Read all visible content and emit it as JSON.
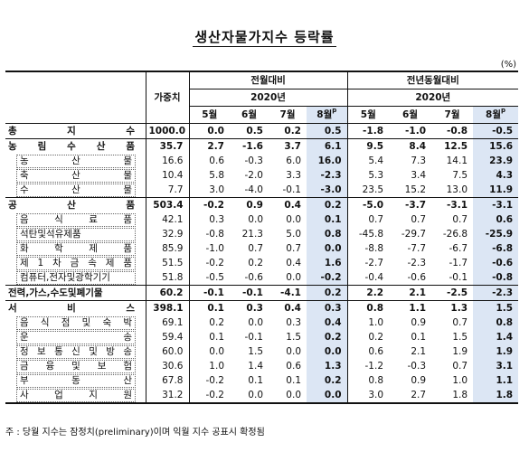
{
  "title": "생산자물가지수 등락률",
  "unit": "(%)",
  "header": {
    "weight": "가중치",
    "group1": "전월대비",
    "group2": "전년동월대비",
    "year1": "2020년",
    "year2": "2020년",
    "months": [
      "5월",
      "6월",
      "7월",
      "8월"
    ],
    "preliminary_mark": "p"
  },
  "rows": [
    {
      "label": "총  지  수",
      "level": "cat",
      "weight": "1000.0",
      "mom": [
        "0.0",
        "0.5",
        "0.2",
        "0.5"
      ],
      "yoy": [
        "-1.8",
        "-1.0",
        "-0.8",
        "-0.5"
      ]
    },
    {
      "label": "농 림 수 산 품",
      "level": "cat",
      "weight": "35.7",
      "mom": [
        "2.7",
        "-1.6",
        "3.7",
        "6.1"
      ],
      "yoy": [
        "9.5",
        "8.4",
        "12.5",
        "15.6"
      ]
    },
    {
      "label": "농 산 물",
      "level": "sub",
      "weight": "16.6",
      "mom": [
        "0.6",
        "-0.3",
        "6.0",
        "16.0"
      ],
      "yoy": [
        "5.4",
        "7.3",
        "14.1",
        "23.9"
      ]
    },
    {
      "label": "축 산 물",
      "level": "sub",
      "weight": "10.4",
      "mom": [
        "5.8",
        "-2.0",
        "3.3",
        "-2.3"
      ],
      "yoy": [
        "5.3",
        "3.4",
        "7.5",
        "4.3"
      ]
    },
    {
      "label": "수 산 물",
      "level": "sub",
      "weight": "7.7",
      "mom": [
        "3.0",
        "-4.0",
        "-0.1",
        "-3.0"
      ],
      "yoy": [
        "23.5",
        "15.2",
        "13.0",
        "11.9"
      ]
    },
    {
      "label": "공 산 품",
      "level": "cat",
      "weight": "503.4",
      "mom": [
        "-0.2",
        "0.9",
        "0.4",
        "0.2"
      ],
      "yoy": [
        "-5.0",
        "-3.7",
        "-3.1",
        "-3.1"
      ]
    },
    {
      "label": "음 식 료 품",
      "level": "sub",
      "weight": "42.1",
      "mom": [
        "0.3",
        "0.0",
        "0.0",
        "0.1"
      ],
      "yoy": [
        "0.7",
        "0.7",
        "0.7",
        "0.6"
      ]
    },
    {
      "label": "석탄및석유제품",
      "level": "sub",
      "weight": "32.9",
      "mom": [
        "-0.8",
        "21.3",
        "5.0",
        "0.8"
      ],
      "yoy": [
        "-45.8",
        "-29.7",
        "-26.8",
        "-25.9"
      ]
    },
    {
      "label": "화 학 제 품",
      "level": "sub",
      "weight": "85.9",
      "mom": [
        "-1.0",
        "0.7",
        "0.7",
        "0.0"
      ],
      "yoy": [
        "-8.8",
        "-7.7",
        "-6.7",
        "-6.8"
      ]
    },
    {
      "label": "제 1 차 금 속 제 품",
      "level": "sub",
      "weight": "51.5",
      "mom": [
        "-0.2",
        "0.2",
        "0.4",
        "1.6"
      ],
      "yoy": [
        "-2.7",
        "-2.3",
        "-1.7",
        "-0.6"
      ]
    },
    {
      "label": "컴퓨터,전자및광학기기",
      "level": "sub",
      "weight": "51.8",
      "mom": [
        "-0.5",
        "-0.6",
        "0.0",
        "-0.2"
      ],
      "yoy": [
        "-0.4",
        "-0.6",
        "-0.1",
        "-0.8"
      ]
    },
    {
      "label": "전력,가스,수도및폐기물",
      "level": "cat",
      "weight": "60.2",
      "mom": [
        "-0.1",
        "-0.1",
        "-4.1",
        "0.2"
      ],
      "yoy": [
        "2.2",
        "2.1",
        "-2.5",
        "-2.3"
      ]
    },
    {
      "label": "서  비  스",
      "level": "cat",
      "weight": "398.1",
      "mom": [
        "0.1",
        "0.3",
        "0.4",
        "0.3"
      ],
      "yoy": [
        "0.8",
        "1.1",
        "1.3",
        "1.5"
      ]
    },
    {
      "label": "음 식 점 및 숙 박",
      "level": "sub",
      "weight": "69.1",
      "mom": [
        "0.2",
        "0.0",
        "0.3",
        "0.4"
      ],
      "yoy": [
        "1.0",
        "0.9",
        "0.7",
        "0.8"
      ]
    },
    {
      "label": "운 송",
      "level": "sub",
      "weight": "59.4",
      "mom": [
        "0.1",
        "-0.1",
        "1.5",
        "0.2"
      ],
      "yoy": [
        "0.2",
        "0.1",
        "1.5",
        "1.4"
      ]
    },
    {
      "label": "정 보 통 신 및 방 송",
      "level": "sub",
      "weight": "60.0",
      "mom": [
        "0.0",
        "1.5",
        "0.0",
        "0.0"
      ],
      "yoy": [
        "0.6",
        "2.1",
        "1.9",
        "1.9"
      ]
    },
    {
      "label": "금 융 및 보 험",
      "level": "sub",
      "weight": "30.6",
      "mom": [
        "1.0",
        "1.4",
        "0.6",
        "1.3"
      ],
      "yoy": [
        "-1.2",
        "-0.3",
        "0.7",
        "3.1"
      ]
    },
    {
      "label": "부 동 산",
      "level": "sub",
      "weight": "67.8",
      "mom": [
        "-0.2",
        "0.1",
        "0.1",
        "0.2"
      ],
      "yoy": [
        "0.8",
        "0.9",
        "1.0",
        "1.1"
      ]
    },
    {
      "label": "사 업 지 원",
      "level": "sub",
      "weight": "31.2",
      "mom": [
        "-0.2",
        "0.0",
        "0.0",
        "0.0"
      ],
      "yoy": [
        "3.0",
        "2.7",
        "1.8",
        "1.8"
      ]
    }
  ],
  "note": "주 : 당월 지수는 잠정치(preliminary)이며 익월 지수 공표시 확정됨",
  "colors": {
    "highlight": "#dce6f4",
    "border": "#111111"
  }
}
